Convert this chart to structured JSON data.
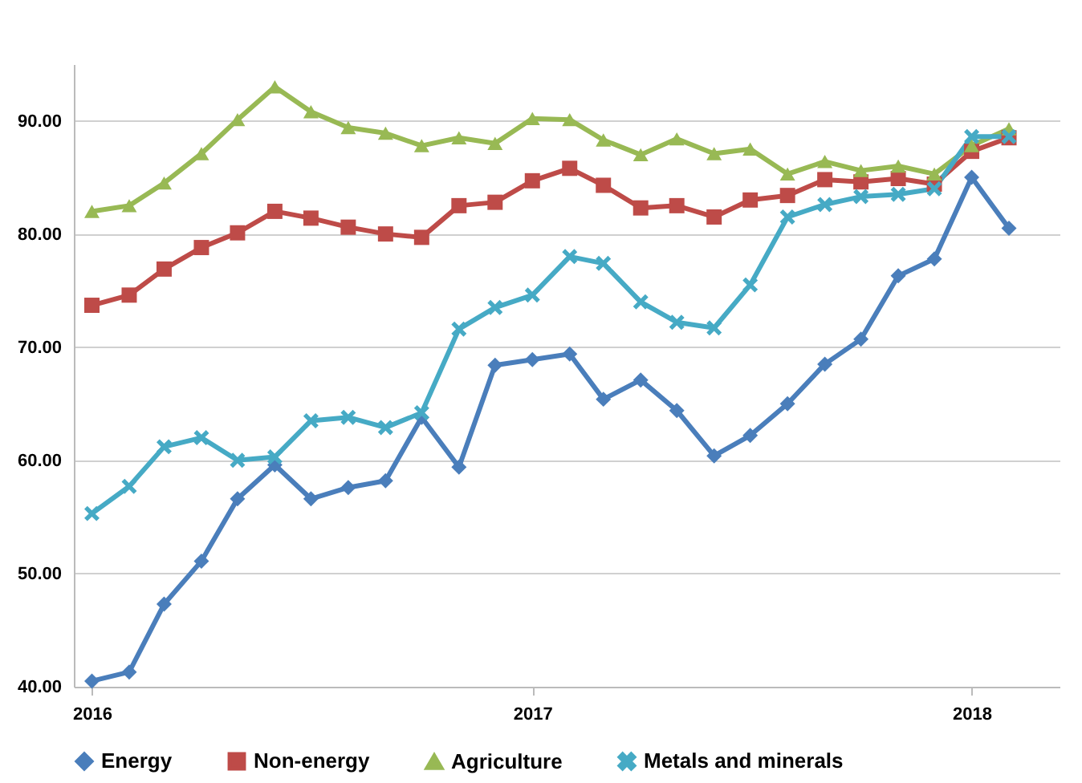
{
  "chart_data": {
    "type": "line",
    "x": [
      "2016-01",
      "2016-02",
      "2016-03",
      "2016-04",
      "2016-05",
      "2016-06",
      "2016-07",
      "2016-08",
      "2016-09",
      "2016-10",
      "2016-11",
      "2016-12",
      "2017-01",
      "2017-02",
      "2017-03",
      "2017-04",
      "2017-05",
      "2017-06",
      "2017-07",
      "2017-08",
      "2017-09",
      "2017-10",
      "2017-11",
      "2017-12",
      "2018-01",
      "2018-02"
    ],
    "series": [
      {
        "name": "Energy",
        "color": "#4a7ebb",
        "marker": "diamond",
        "values": [
          40.5,
          41.3,
          47.3,
          51.1,
          56.6,
          59.6,
          56.6,
          57.6,
          58.2,
          63.8,
          59.4,
          68.4,
          68.9,
          69.4,
          65.4,
          67.1,
          64.4,
          60.4,
          62.2,
          65.0,
          68.5,
          70.7,
          76.3,
          77.8,
          85.0,
          80.5
        ]
      },
      {
        "name": "Non-energy",
        "color": "#be4b48",
        "marker": "square",
        "values": [
          73.7,
          74.6,
          76.9,
          78.8,
          80.1,
          82.0,
          81.4,
          80.6,
          80.0,
          79.7,
          82.5,
          82.8,
          84.7,
          85.8,
          84.3,
          82.3,
          82.5,
          81.5,
          83.0,
          83.4,
          84.8,
          84.6,
          84.9,
          84.4,
          87.3,
          88.5
        ]
      },
      {
        "name": "Agriculture",
        "color": "#98b954",
        "marker": "triangle",
        "values": [
          82.0,
          82.5,
          84.5,
          87.1,
          90.1,
          93.0,
          90.8,
          89.4,
          88.9,
          87.8,
          88.5,
          88.0,
          90.2,
          90.1,
          88.3,
          87.0,
          88.4,
          87.1,
          87.5,
          85.3,
          86.4,
          85.6,
          86.0,
          85.3,
          87.8,
          89.3
        ]
      },
      {
        "name": "Metals and minerals",
        "color": "#46aac5",
        "marker": "cross",
        "values": [
          55.3,
          57.7,
          61.2,
          62.0,
          60.0,
          60.3,
          63.5,
          63.8,
          62.9,
          64.2,
          71.6,
          73.5,
          74.6,
          78.0,
          77.4,
          74.0,
          72.2,
          71.7,
          75.5,
          81.5,
          82.6,
          83.3,
          83.5,
          84.0,
          88.6,
          88.6
        ]
      }
    ],
    "xlim": [
      "2015-12-17",
      "2018-03-15"
    ],
    "xticks": [
      {
        "value": "2016-01",
        "label": "2016"
      },
      {
        "value": "2017-01",
        "label": "2017"
      },
      {
        "value": "2018-01",
        "label": "2018"
      }
    ],
    "ylim": [
      40,
      95
    ],
    "yticks": [
      {
        "value": 40,
        "label": "40.00"
      },
      {
        "value": 50,
        "label": "50.00"
      },
      {
        "value": 60,
        "label": "60.00"
      },
      {
        "value": 70,
        "label": "70.00"
      },
      {
        "value": 80,
        "label": "80.00"
      },
      {
        "value": 90,
        "label": "90.00"
      }
    ],
    "grid": "y",
    "legend": "bottom"
  }
}
